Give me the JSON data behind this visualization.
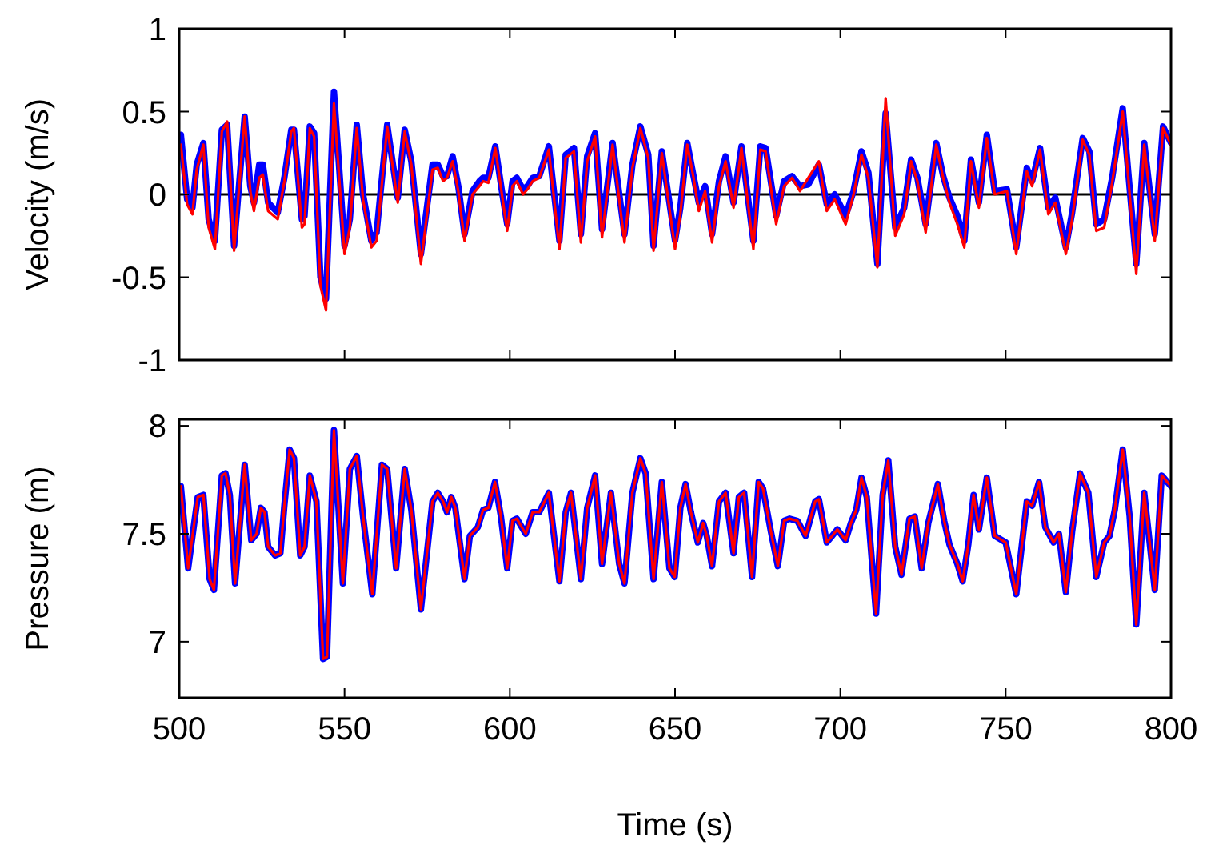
{
  "chart_data": [
    {
      "type": "line",
      "ylabel": "Velocity (m/s)",
      "xlim": [
        500,
        800
      ],
      "xticks": [
        500,
        550,
        600,
        650,
        700,
        750,
        800
      ],
      "ylim": [
        -1,
        1
      ],
      "yticks": [
        -1,
        -0.5,
        0,
        0.5,
        1
      ],
      "tick_labels": "y",
      "ref_lines": [
        {
          "axis": "y",
          "value": 0,
          "color": "#000000"
        }
      ],
      "x": [
        500.5,
        502.4,
        504,
        505.3,
        507.3,
        508.9,
        510.8,
        512.9,
        514.5,
        516.6,
        519.8,
        521.5,
        522.6,
        524.2,
        525.3,
        526.9,
        529.8,
        531.8,
        533.9,
        534.7,
        537.1,
        537.9,
        539.5,
        540.8,
        542.7,
        544.4,
        546.8,
        550,
        551.6,
        553.7,
        555.6,
        558.1,
        559.7,
        562.9,
        566.1,
        568.2,
        570.2,
        573.1,
        576.6,
        578.2,
        579.8,
        581,
        582.7,
        584.4,
        586.3,
        588.7,
        590.8,
        591.9,
        593.5,
        595.6,
        597.6,
        599.2,
        600.8,
        602.1,
        604,
        605.3,
        606.9,
        608.9,
        611.8,
        615,
        616.9,
        619.4,
        621.5,
        623.4,
        625.8,
        627.9,
        631.1,
        634.7,
        637.1,
        639.5,
        641.9,
        643.5,
        646,
        650,
        651.6,
        653.7,
        655.6,
        657.2,
        659.1,
        661.2,
        663.3,
        665.3,
        667.7,
        670.1,
        673.7,
        675.8,
        677.4,
        680.6,
        683,
        685.4,
        687.8,
        690.3,
        693.5,
        695.9,
        698.3,
        701.6,
        704,
        706.4,
        708.5,
        711.2,
        713.7,
        716.6,
        719.3,
        721.4,
        723.3,
        725.8,
        729,
        731.1,
        733,
        735.4,
        737.5,
        739.5,
        741.9,
        744.3,
        746.7,
        750.4,
        753.2,
        756.4,
        758,
        760.4,
        762.9,
        765,
        768.2,
        770.1,
        773.3,
        775.3,
        777.4,
        779.8,
        782.2,
        785.4,
        787,
        789.5,
        791.9,
        795.1,
        797.6,
        800
      ],
      "series": [
        {
          "color": "#0000ff",
          "values": [
            0.36,
            -0.03,
            -0.08,
            0.18,
            0.31,
            -0.15,
            -0.28,
            0.39,
            0.42,
            -0.31,
            0.47,
            0.05,
            -0.05,
            0.18,
            0.18,
            -0.05,
            -0.11,
            0.1,
            0.39,
            0.39,
            -0.15,
            -0.13,
            0.41,
            0.37,
            -0.5,
            -0.63,
            0.62,
            -0.31,
            -0.15,
            0.42,
            0,
            -0.28,
            -0.23,
            0.42,
            -0.02,
            0.39,
            0.2,
            -0.36,
            0.18,
            0.18,
            0.11,
            0.11,
            0.23,
            0.05,
            -0.24,
            0.02,
            0.08,
            0.1,
            0.1,
            0.29,
            0.02,
            -0.18,
            0.08,
            0.1,
            0.03,
            0.05,
            0.1,
            0.11,
            0.29,
            -0.28,
            0.24,
            0.28,
            -0.24,
            0.23,
            0.37,
            -0.21,
            0.31,
            -0.24,
            0.18,
            0.41,
            0.24,
            -0.31,
            0.26,
            -0.28,
            -0.08,
            0.31,
            0.11,
            -0.05,
            0.05,
            -0.24,
            0.08,
            0.23,
            -0.05,
            0.29,
            -0.28,
            0.29,
            0.28,
            -0.13,
            0.08,
            0.11,
            0.05,
            0.06,
            0.18,
            -0.06,
            0,
            -0.13,
            0.02,
            0.26,
            0.13,
            -0.42,
            0.49,
            -0.2,
            -0.08,
            0.21,
            0.1,
            -0.18,
            0.31,
            0.11,
            -0.02,
            -0.13,
            -0.28,
            0.21,
            -0.05,
            0.36,
            0.02,
            0.03,
            -0.32,
            0.16,
            0.08,
            0.28,
            -0.08,
            -0.02,
            -0.32,
            -0.11,
            0.34,
            0.26,
            -0.18,
            -0.15,
            0.1,
            0.52,
            0.15,
            -0.42,
            0.31,
            -0.24,
            0.41,
            0.31
          ]
        },
        {
          "color": "#ff0000",
          "values": [
            0.3,
            -0.06,
            -0.12,
            0.15,
            0.3,
            -0.2,
            -0.33,
            0.38,
            0.44,
            -0.34,
            0.47,
            0.02,
            -0.1,
            0.1,
            0.12,
            -0.1,
            -0.15,
            0.08,
            0.38,
            0.4,
            -0.2,
            -0.18,
            0.4,
            0.35,
            -0.55,
            -0.7,
            0.55,
            -0.36,
            -0.2,
            0.4,
            -0.03,
            -0.32,
            -0.28,
            0.41,
            -0.05,
            0.38,
            0.18,
            -0.42,
            0.15,
            0.16,
            0.08,
            0.1,
            0.2,
            0.02,
            -0.28,
            0,
            0.05,
            0.08,
            0.07,
            0.28,
            0,
            -0.22,
            0.05,
            0.08,
            0,
            0.03,
            0.08,
            0.1,
            0.27,
            -0.33,
            0.22,
            0.26,
            -0.29,
            0.2,
            0.35,
            -0.26,
            0.3,
            -0.29,
            0.16,
            0.4,
            0.22,
            -0.34,
            0.25,
            -0.33,
            -0.12,
            0.3,
            0.1,
            -0.1,
            0.02,
            -0.29,
            0.05,
            0.2,
            -0.08,
            0.28,
            -0.33,
            0.27,
            0.26,
            -0.18,
            0.05,
            0.1,
            0.02,
            0.1,
            0.2,
            -0.1,
            -0.03,
            -0.18,
            0,
            0.24,
            0.1,
            -0.44,
            0.58,
            -0.25,
            -0.12,
            0.2,
            0.08,
            -0.23,
            0.3,
            0.1,
            -0.05,
            -0.18,
            -0.32,
            0.2,
            -0.08,
            0.34,
            0,
            0.02,
            -0.36,
            0.14,
            0.05,
            0.27,
            -0.12,
            -0.05,
            -0.36,
            -0.15,
            0.33,
            0.24,
            -0.22,
            -0.2,
            0.07,
            0.5,
            0.12,
            -0.48,
            0.3,
            -0.28,
            0.4,
            0.3
          ]
        }
      ]
    },
    {
      "type": "line",
      "ylabel": "Pressure (m)",
      "xlabel": "Time (s)",
      "xlim": [
        500,
        800
      ],
      "xticks": [
        500,
        550,
        600,
        650,
        700,
        750,
        800
      ],
      "ylim": [
        6.74,
        8.03
      ],
      "yticks": [
        7,
        7.5,
        8
      ],
      "x": [
        500.5,
        502.7,
        505.6,
        507.3,
        509.2,
        510.5,
        512.9,
        514,
        515.3,
        516.9,
        519.8,
        521.8,
        523.4,
        524.7,
        525.8,
        526.9,
        529,
        530.6,
        531.8,
        533.4,
        534.7,
        536.6,
        537.9,
        539.5,
        541.5,
        543.5,
        544.7,
        546.8,
        549.5,
        551.6,
        553.7,
        555.6,
        558.4,
        561.3,
        562.9,
        565.6,
        568.2,
        570.2,
        573.1,
        576.6,
        578.2,
        579.8,
        581,
        582.3,
        583.5,
        586.3,
        587.9,
        590.3,
        591.9,
        593.5,
        595.5,
        597.3,
        599.2,
        600.8,
        602.1,
        604.8,
        606.9,
        608.9,
        611.8,
        615,
        616.9,
        618.5,
        621.5,
        623.4,
        625.8,
        627.9,
        630.6,
        633.1,
        634.7,
        637.1,
        639.5,
        641.1,
        643.5,
        646,
        648.3,
        649.9,
        651.6,
        653.2,
        654.8,
        656.9,
        658.5,
        659.6,
        661.2,
        663.3,
        665.3,
        667.7,
        669.3,
        670.9,
        673.3,
        675.3,
        676.6,
        679,
        681.1,
        683,
        684.6,
        687,
        689.5,
        692.4,
        693.5,
        695.9,
        697.5,
        699.1,
        701.6,
        703.2,
        704.8,
        706.4,
        708,
        710.8,
        712.8,
        714.5,
        716.6,
        718.5,
        720.9,
        722.5,
        724.6,
        726.6,
        729.5,
        731.4,
        733,
        735.4,
        737,
        738.7,
        740.3,
        741.9,
        744.3,
        746.7,
        750,
        753.2,
        756.4,
        758,
        760.1,
        762,
        764.5,
        766.1,
        768.2,
        770.1,
        772.5,
        775,
        777.4,
        779.8,
        781.4,
        783,
        785.4,
        787.5,
        789.5,
        791.9,
        795.1,
        797.2,
        800
      ],
      "series": [
        {
          "color": "#0000ff",
          "values": [
            7.72,
            7.34,
            7.67,
            7.68,
            7.29,
            7.24,
            7.77,
            7.78,
            7.68,
            7.27,
            7.82,
            7.47,
            7.5,
            7.62,
            7.6,
            7.44,
            7.4,
            7.41,
            7.63,
            7.89,
            7.85,
            7.4,
            7.44,
            7.77,
            7.65,
            6.92,
            6.93,
            7.98,
            7.27,
            7.8,
            7.86,
            7.58,
            7.22,
            7.82,
            7.8,
            7.34,
            7.8,
            7.61,
            7.15,
            7.65,
            7.69,
            7.65,
            7.6,
            7.67,
            7.62,
            7.29,
            7.49,
            7.53,
            7.61,
            7.62,
            7.74,
            7.58,
            7.34,
            7.56,
            7.57,
            7.5,
            7.6,
            7.6,
            7.69,
            7.28,
            7.6,
            7.69,
            7.29,
            7.62,
            7.77,
            7.36,
            7.69,
            7.36,
            7.27,
            7.69,
            7.85,
            7.78,
            7.29,
            7.74,
            7.34,
            7.3,
            7.62,
            7.73,
            7.6,
            7.46,
            7.55,
            7.49,
            7.35,
            7.65,
            7.69,
            7.41,
            7.67,
            7.69,
            7.3,
            7.74,
            7.71,
            7.51,
            7.35,
            7.56,
            7.57,
            7.56,
            7.49,
            7.65,
            7.66,
            7.46,
            7.49,
            7.52,
            7.47,
            7.55,
            7.61,
            7.76,
            7.67,
            7.13,
            7.68,
            7.84,
            7.44,
            7.31,
            7.57,
            7.58,
            7.34,
            7.55,
            7.73,
            7.56,
            7.45,
            7.36,
            7.28,
            7.45,
            7.68,
            7.52,
            7.76,
            7.49,
            7.46,
            7.22,
            7.65,
            7.63,
            7.74,
            7.53,
            7.46,
            7.5,
            7.23,
            7.51,
            7.78,
            7.69,
            7.3,
            7.46,
            7.49,
            7.61,
            7.89,
            7.58,
            7.08,
            7.69,
            7.24,
            7.77,
            7.72
          ]
        },
        {
          "color": "#ff0000",
          "values": [
            7.72,
            7.34,
            7.67,
            7.68,
            7.29,
            7.24,
            7.77,
            7.78,
            7.68,
            7.27,
            7.82,
            7.47,
            7.5,
            7.62,
            7.6,
            7.44,
            7.4,
            7.41,
            7.63,
            7.89,
            7.85,
            7.4,
            7.44,
            7.77,
            7.65,
            6.92,
            6.93,
            7.98,
            7.27,
            7.8,
            7.86,
            7.58,
            7.22,
            7.82,
            7.8,
            7.34,
            7.8,
            7.61,
            7.15,
            7.65,
            7.69,
            7.65,
            7.6,
            7.67,
            7.62,
            7.29,
            7.49,
            7.53,
            7.61,
            7.62,
            7.74,
            7.58,
            7.34,
            7.56,
            7.57,
            7.5,
            7.6,
            7.6,
            7.69,
            7.28,
            7.6,
            7.69,
            7.29,
            7.62,
            7.77,
            7.36,
            7.69,
            7.36,
            7.27,
            7.69,
            7.85,
            7.78,
            7.29,
            7.74,
            7.34,
            7.3,
            7.62,
            7.73,
            7.6,
            7.46,
            7.55,
            7.49,
            7.35,
            7.65,
            7.69,
            7.41,
            7.67,
            7.69,
            7.3,
            7.74,
            7.71,
            7.51,
            7.35,
            7.56,
            7.57,
            7.56,
            7.49,
            7.65,
            7.66,
            7.46,
            7.49,
            7.52,
            7.47,
            7.55,
            7.61,
            7.76,
            7.67,
            7.13,
            7.68,
            7.84,
            7.44,
            7.31,
            7.57,
            7.58,
            7.34,
            7.55,
            7.73,
            7.56,
            7.45,
            7.36,
            7.28,
            7.45,
            7.68,
            7.52,
            7.76,
            7.49,
            7.46,
            7.22,
            7.65,
            7.63,
            7.74,
            7.53,
            7.46,
            7.5,
            7.23,
            7.51,
            7.78,
            7.69,
            7.3,
            7.46,
            7.49,
            7.61,
            7.89,
            7.58,
            7.08,
            7.69,
            7.24,
            7.77,
            7.72
          ]
        }
      ]
    }
  ]
}
